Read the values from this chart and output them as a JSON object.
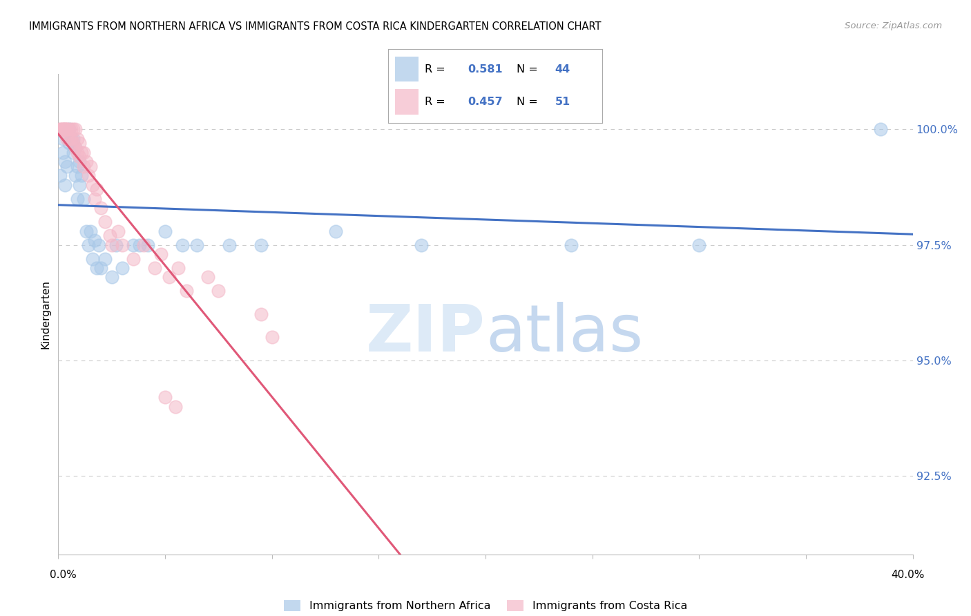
{
  "title": "IMMIGRANTS FROM NORTHERN AFRICA VS IMMIGRANTS FROM COSTA RICA KINDERGARTEN CORRELATION CHART",
  "source": "Source: ZipAtlas.com",
  "ylabel": "Kindergarten",
  "ytick_labels": [
    "100.0%",
    "97.5%",
    "95.0%",
    "92.5%"
  ],
  "ytick_values": [
    1.0,
    0.975,
    0.95,
    0.925
  ],
  "xmin": 0.0,
  "xmax": 0.4,
  "ymin": 0.908,
  "ymax": 1.012,
  "legend_R_blue": "0.581",
  "legend_N_blue": "44",
  "legend_R_pink": "0.457",
  "legend_N_pink": "51",
  "blue_color": "#a8c8e8",
  "pink_color": "#f4b8c8",
  "blue_line_color": "#4472c4",
  "pink_line_color": "#e05878",
  "blue_scatter_x": [
    0.001,
    0.002,
    0.002,
    0.003,
    0.003,
    0.004,
    0.005,
    0.005,
    0.006,
    0.007,
    0.007,
    0.008,
    0.008,
    0.009,
    0.009,
    0.01,
    0.01,
    0.011,
    0.012,
    0.013,
    0.014,
    0.015,
    0.016,
    0.017,
    0.018,
    0.019,
    0.02,
    0.022,
    0.025,
    0.027,
    0.03,
    0.035,
    0.038,
    0.042,
    0.05,
    0.058,
    0.065,
    0.08,
    0.095,
    0.13,
    0.17,
    0.24,
    0.3,
    0.385
  ],
  "blue_scatter_y": [
    0.99,
    0.998,
    0.995,
    0.993,
    0.988,
    0.992,
    1.0,
    0.997,
    0.998,
    0.998,
    0.995,
    0.996,
    0.99,
    0.992,
    0.985,
    0.993,
    0.988,
    0.99,
    0.985,
    0.978,
    0.975,
    0.978,
    0.972,
    0.976,
    0.97,
    0.975,
    0.97,
    0.972,
    0.968,
    0.975,
    0.97,
    0.975,
    0.975,
    0.975,
    0.978,
    0.975,
    0.975,
    0.975,
    0.975,
    0.978,
    0.975,
    0.975,
    0.975,
    1.0
  ],
  "pink_scatter_x": [
    0.001,
    0.001,
    0.002,
    0.002,
    0.002,
    0.003,
    0.003,
    0.003,
    0.004,
    0.004,
    0.004,
    0.005,
    0.005,
    0.006,
    0.006,
    0.007,
    0.007,
    0.008,
    0.008,
    0.009,
    0.009,
    0.01,
    0.01,
    0.011,
    0.012,
    0.012,
    0.013,
    0.014,
    0.015,
    0.016,
    0.017,
    0.018,
    0.02,
    0.022,
    0.024,
    0.025,
    0.028,
    0.03,
    0.035,
    0.04,
    0.045,
    0.048,
    0.052,
    0.056,
    0.06,
    0.07,
    0.075,
    0.095,
    0.1,
    0.05,
    0.055
  ],
  "pink_scatter_y": [
    1.0,
    1.0,
    1.0,
    1.0,
    1.0,
    1.0,
    1.0,
    1.0,
    1.0,
    0.998,
    1.0,
    1.0,
    0.998,
    1.0,
    0.998,
    1.0,
    0.997,
    1.0,
    0.996,
    0.998,
    0.995,
    0.997,
    0.994,
    0.995,
    0.995,
    0.992,
    0.993,
    0.99,
    0.992,
    0.988,
    0.985,
    0.987,
    0.983,
    0.98,
    0.977,
    0.975,
    0.978,
    0.975,
    0.972,
    0.975,
    0.97,
    0.973,
    0.968,
    0.97,
    0.965,
    0.968,
    0.965,
    0.96,
    0.955,
    0.942,
    0.94
  ]
}
